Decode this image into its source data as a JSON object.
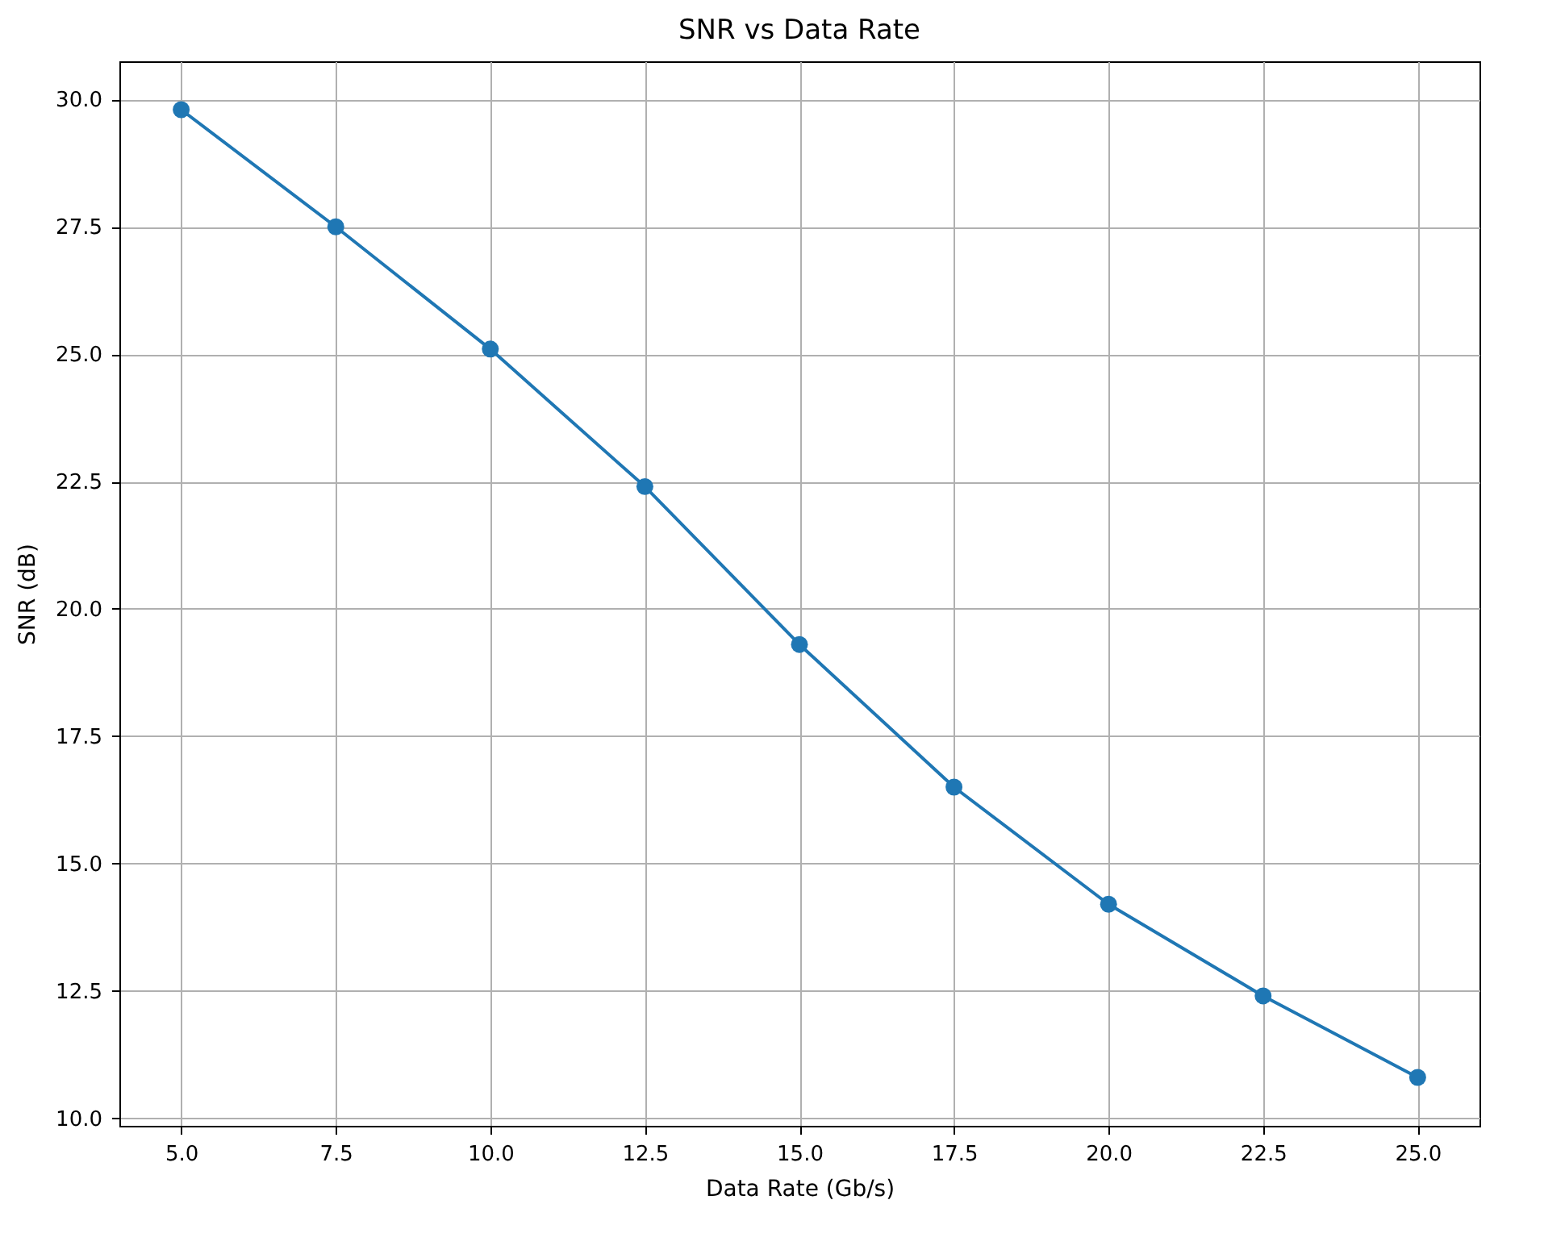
{
  "chart_data": {
    "type": "line",
    "title": "SNR vs Data Rate",
    "xlabel": "Data Rate (Gb/s)",
    "ylabel": "SNR (dB)",
    "x": [
      5.0,
      7.5,
      10.0,
      12.5,
      15.0,
      17.5,
      20.0,
      22.5,
      25.0
    ],
    "series": [
      {
        "color": "#1f77b4",
        "values": [
          29.8,
          27.5,
          25.1,
          22.4,
          19.3,
          16.5,
          14.2,
          12.4,
          10.8
        ]
      }
    ],
    "xlim": [
      4.0,
      26.0
    ],
    "ylim": [
      9.85,
      30.75
    ],
    "xticks": [
      {
        "value": 5,
        "label": "5.0"
      },
      {
        "value": 7.5,
        "label": "7.5"
      },
      {
        "value": 10,
        "label": "10.0"
      },
      {
        "value": 12.5,
        "label": "12.5"
      },
      {
        "value": 15,
        "label": "15.0"
      },
      {
        "value": 17.5,
        "label": "17.5"
      },
      {
        "value": 20,
        "label": "20.0"
      },
      {
        "value": 22.5,
        "label": "22.5"
      },
      {
        "value": 25,
        "label": "25.0"
      }
    ],
    "yticks": [
      {
        "value": 10,
        "label": "10.0"
      },
      {
        "value": 12.5,
        "label": "12.5"
      },
      {
        "value": 15,
        "label": "15.0"
      },
      {
        "value": 17.5,
        "label": "17.5"
      },
      {
        "value": 20,
        "label": "20.0"
      },
      {
        "value": 22.5,
        "label": "22.5"
      },
      {
        "value": 25,
        "label": "25.0"
      },
      {
        "value": 27.5,
        "label": "27.5"
      },
      {
        "value": 30,
        "label": "30.0"
      }
    ],
    "grid": true,
    "marker": "circle",
    "line_style": "solid"
  }
}
